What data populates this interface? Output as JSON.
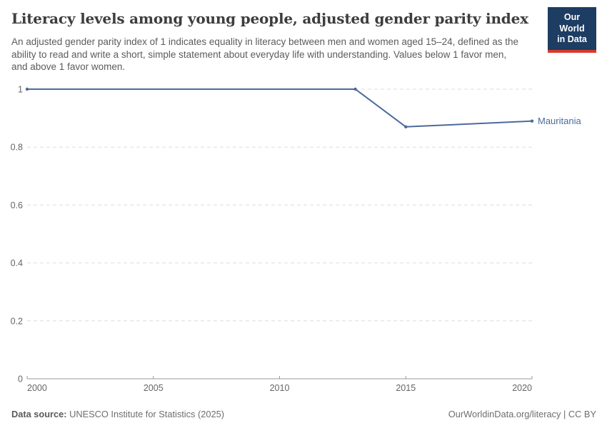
{
  "header": {
    "title": "Literacy levels among young people, adjusted gender parity index",
    "subtitle": "An adjusted gender parity index of 1 indicates equality in literacy between men and women aged 15–24, defined as the ability to read and write a short, simple statement about everyday life with understanding. Values below 1 favor men, and above 1 favor women.",
    "logo": {
      "line1": "Our World",
      "line2": "in Data",
      "bg_color": "#1d3d63",
      "accent_color": "#d93a2b"
    }
  },
  "chart_data": {
    "type": "line",
    "title": "Literacy levels among young people, adjusted gender parity index",
    "xlabel": "",
    "ylabel": "",
    "xlim": [
      2000,
      2020
    ],
    "ylim": [
      0,
      1
    ],
    "x_ticks": [
      2000,
      2005,
      2010,
      2015,
      2020
    ],
    "y_ticks": [
      0,
      0.2,
      0.4,
      0.6,
      0.8,
      1
    ],
    "grid": "horizontal-dashed",
    "legend_position": "end-of-line-label",
    "series": [
      {
        "name": "Mauritania",
        "color": "#4c6a9c",
        "points": [
          {
            "x": 2000,
            "y": 1.0
          },
          {
            "x": 2013,
            "y": 1.0
          },
          {
            "x": 2015,
            "y": 0.87
          },
          {
            "x": 2020,
            "y": 0.89
          }
        ]
      }
    ],
    "colors": {
      "gridline": "#dedede",
      "axis": "#999999",
      "tick_label": "#666666"
    }
  },
  "footer": {
    "source_label": "Data source:",
    "source_text": " UNESCO Institute for Statistics (2025)",
    "rights": "OurWorldinData.org/literacy | CC BY"
  }
}
